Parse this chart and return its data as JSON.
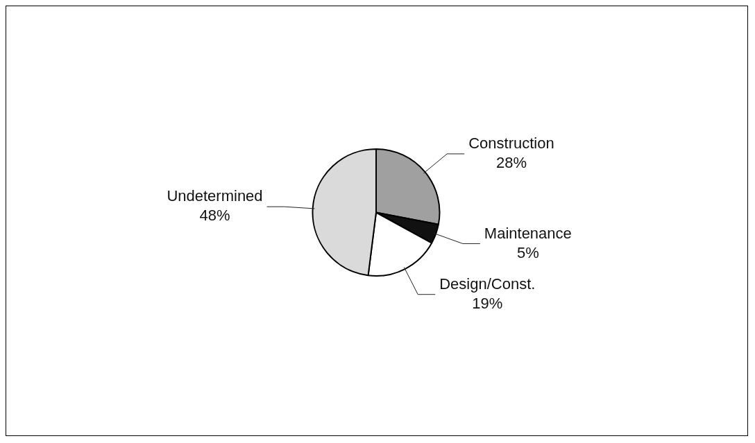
{
  "chart_data": {
    "type": "pie",
    "categories": [
      "Construction",
      "Maintenance",
      "Design/Const.",
      "Undetermined"
    ],
    "values": [
      28,
      5,
      19,
      48
    ],
    "value_labels": [
      "28%",
      "5%",
      "19%",
      "48%"
    ],
    "colors": [
      "#a0a0a0",
      "#111111",
      "#ffffff",
      "#dadada"
    ],
    "legend": false
  }
}
